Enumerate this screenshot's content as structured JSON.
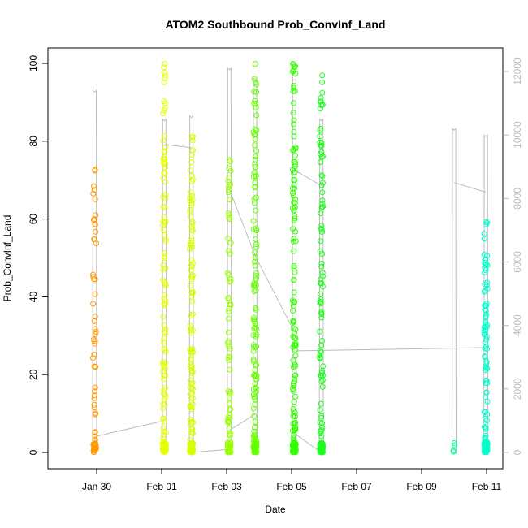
{
  "chart_data": {
    "type": "scatter",
    "title": "ATOM2 Southbound Prob_ConvInf_Land",
    "xlabel": "Date",
    "ylabel": "Prob_ConvInf_Land",
    "x_ticks": [
      "Jan 30",
      "Feb 01",
      "Feb 03",
      "Feb 05",
      "Feb 07",
      "Feb 09",
      "Feb 11"
    ],
    "y_ticks": [
      "0",
      "20",
      "40",
      "60",
      "80",
      "100"
    ],
    "y2_ticks": [
      "0",
      "2000",
      "4000",
      "6000",
      "8000",
      "10000",
      "12000"
    ],
    "xlim": [
      "2017-01-28 23:00",
      "2017-02-11 10:00"
    ],
    "ylim": [
      0,
      100
    ],
    "y2lim": [
      0,
      12000
    ],
    "grid": false,
    "point_style": "open circles, colored by date (orange to cyan)",
    "passes": [
      {
        "date": "2017-01-29 22:30",
        "color": "#FF9900",
        "n_points": 70,
        "max_value": 72.7
      },
      {
        "date": "2017-02-01 02:00",
        "color": "#E6FF00",
        "n_points": 150,
        "max_value": 99.9
      },
      {
        "date": "2017-02-01 22:00",
        "color": "#D4FF00",
        "n_points": 150,
        "max_value": 81.2
      },
      {
        "date": "2017-02-03 02:00",
        "color": "#99FF00",
        "n_points": 90,
        "max_value": 75.2
      },
      {
        "date": "2017-02-03 21:00",
        "color": "#66FF00",
        "n_points": 160,
        "max_value": 99.9
      },
      {
        "date": "2017-02-05 02:00",
        "color": "#33FF00",
        "n_points": 160,
        "max_value": 99.9
      },
      {
        "date": "2017-02-05 22:00",
        "color": "#1AFF1A",
        "n_points": 140,
        "max_value": 96.9
      },
      {
        "date": "2017-02-10 00:00",
        "color": "#00FF99",
        "n_points": 4,
        "max_value": 2.4
      },
      {
        "date": "2017-02-10 23:30",
        "color": "#00FFCC",
        "n_points": 120,
        "max_value": 59.3
      }
    ],
    "altitude_line": {
      "axis": "right",
      "color": "#bdbdbd",
      "segments": [
        {
          "date": "2017-01-29 22:30",
          "peak": 11400
        },
        {
          "date": "2017-02-01 02:00",
          "peak": 10500
        },
        {
          "date": "2017-02-01 22:00",
          "peak": 10600
        },
        {
          "date": "2017-02-03 02:00",
          "peak": 12100
        },
        {
          "date": "2017-02-03 21:00",
          "peak": 11800
        },
        {
          "date": "2017-02-05 02:00",
          "peak": 12000
        },
        {
          "date": "2017-02-05 22:00",
          "peak": 10500
        },
        {
          "date": "2017-02-10 00:00",
          "peak": 10200
        },
        {
          "date": "2017-02-10 23:30",
          "peak": 10000
        }
      ],
      "connectors": [
        [
          0,
          500,
          1,
          1000
        ],
        [
          1,
          9700,
          2,
          9600
        ],
        [
          2,
          0,
          3,
          100
        ],
        [
          3,
          8300,
          4,
          6200
        ],
        [
          4,
          1200,
          3,
          700
        ],
        [
          4,
          6200,
          5,
          3800
        ],
        [
          5,
          8900,
          6,
          8400
        ],
        [
          6,
          0,
          5,
          600
        ],
        [
          5,
          3200,
          8,
          3300
        ],
        [
          7,
          8500,
          8,
          8200
        ]
      ]
    }
  }
}
